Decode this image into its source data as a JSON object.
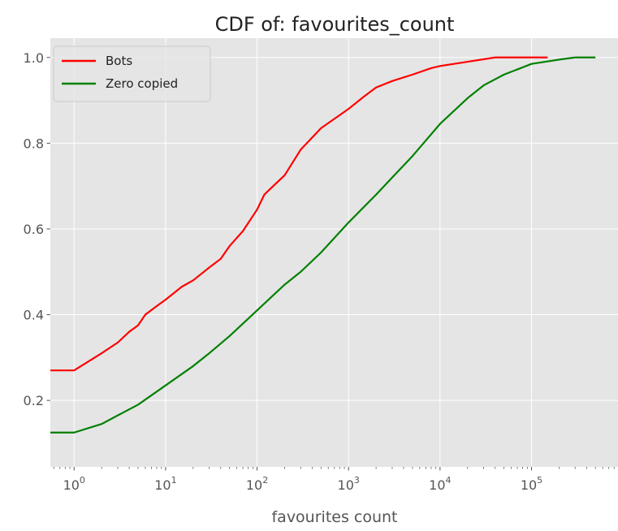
{
  "chart_data": {
    "type": "line",
    "title": "CDF of: favourites_count",
    "xlabel": "favourites count",
    "ylabel": "",
    "xscale": "log",
    "xlim": [
      0.55,
      900000
    ],
    "ylim": [
      0.045,
      1.045
    ],
    "grid": true,
    "legend_position": "top-left",
    "x_ticks": [
      {
        "value": 1,
        "base": "10",
        "exp": "0"
      },
      {
        "value": 10,
        "base": "10",
        "exp": "1"
      },
      {
        "value": 100,
        "base": "10",
        "exp": "2"
      },
      {
        "value": 1000,
        "base": "10",
        "exp": "3"
      },
      {
        "value": 10000,
        "base": "10",
        "exp": "4"
      },
      {
        "value": 100000,
        "base": "10",
        "exp": "5"
      }
    ],
    "y_ticks": [
      {
        "value": 0.2,
        "label": "0.2"
      },
      {
        "value": 0.4,
        "label": "0.4"
      },
      {
        "value": 0.6,
        "label": "0.6"
      },
      {
        "value": 0.8,
        "label": "0.8"
      },
      {
        "value": 1.0,
        "label": "1.0"
      }
    ],
    "series": [
      {
        "name": "Bots",
        "color": "#ff0000",
        "points": [
          [
            0.55,
            0.27
          ],
          [
            1,
            0.27
          ],
          [
            2,
            0.31
          ],
          [
            3,
            0.335
          ],
          [
            4,
            0.36
          ],
          [
            5,
            0.375
          ],
          [
            6,
            0.4
          ],
          [
            8,
            0.42
          ],
          [
            10,
            0.435
          ],
          [
            15,
            0.465
          ],
          [
            20,
            0.48
          ],
          [
            30,
            0.51
          ],
          [
            40,
            0.53
          ],
          [
            50,
            0.56
          ],
          [
            70,
            0.595
          ],
          [
            100,
            0.645
          ],
          [
            120,
            0.68
          ],
          [
            150,
            0.7
          ],
          [
            200,
            0.725
          ],
          [
            300,
            0.785
          ],
          [
            500,
            0.835
          ],
          [
            1000,
            0.88
          ],
          [
            1500,
            0.91
          ],
          [
            2000,
            0.93
          ],
          [
            3000,
            0.945
          ],
          [
            5000,
            0.96
          ],
          [
            8000,
            0.975
          ],
          [
            10000,
            0.98
          ],
          [
            20000,
            0.99
          ],
          [
            40000,
            1.0
          ],
          [
            150000,
            1.0
          ]
        ]
      },
      {
        "name": "Zero copied",
        "color": "#008000",
        "points": [
          [
            0.55,
            0.125
          ],
          [
            1,
            0.125
          ],
          [
            2,
            0.145
          ],
          [
            3,
            0.165
          ],
          [
            5,
            0.19
          ],
          [
            10,
            0.235
          ],
          [
            20,
            0.28
          ],
          [
            30,
            0.31
          ],
          [
            50,
            0.35
          ],
          [
            100,
            0.41
          ],
          [
            200,
            0.47
          ],
          [
            300,
            0.5
          ],
          [
            500,
            0.545
          ],
          [
            1000,
            0.615
          ],
          [
            2000,
            0.68
          ],
          [
            3000,
            0.72
          ],
          [
            5000,
            0.77
          ],
          [
            10000,
            0.845
          ],
          [
            20000,
            0.905
          ],
          [
            30000,
            0.935
          ],
          [
            50000,
            0.96
          ],
          [
            100000,
            0.985
          ],
          [
            200000,
            0.995
          ],
          [
            300000,
            1.0
          ],
          [
            500000,
            1.0
          ]
        ]
      }
    ]
  }
}
